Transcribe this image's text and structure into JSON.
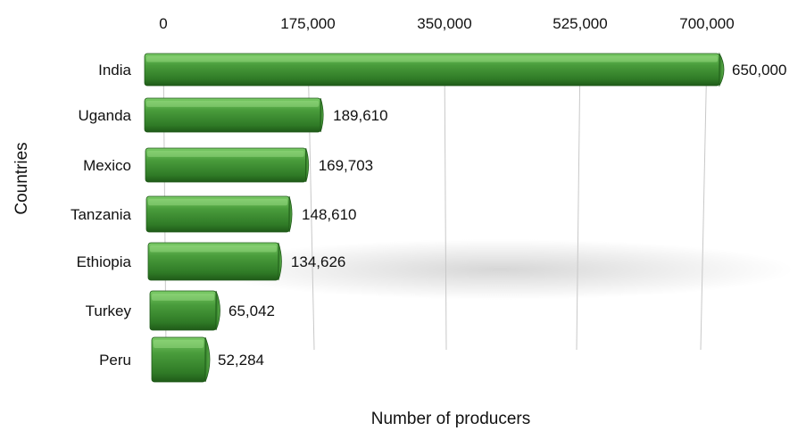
{
  "chart_data": {
    "type": "bar",
    "orientation": "horizontal",
    "categories": [
      "India",
      "Uganda",
      "Mexico",
      "Tanzania",
      "Ethiopia",
      "Turkey",
      "Peru"
    ],
    "values": [
      650000,
      189610,
      169703,
      148610,
      134626,
      65042,
      52284
    ],
    "data_labels": [
      "650,000",
      "189,610",
      "169,703",
      "148,610",
      "134,626",
      "65,042",
      "52,284"
    ],
    "xlabel": "Number of producers",
    "ylabel": "Countries",
    "xlim": [
      0,
      700000
    ],
    "x_ticks": [
      0,
      175000,
      350000,
      525000,
      700000
    ],
    "x_tick_labels": [
      "0",
      "175,000",
      "350,000",
      "525,000",
      "700,000"
    ],
    "x_axis_position": "top",
    "grid": true,
    "legend": "none",
    "colors": {
      "bar": "#3f8f33",
      "bar_light": "#6cc05a",
      "bar_dark": "#1f5a18",
      "grid": "#c8c8c8"
    }
  }
}
